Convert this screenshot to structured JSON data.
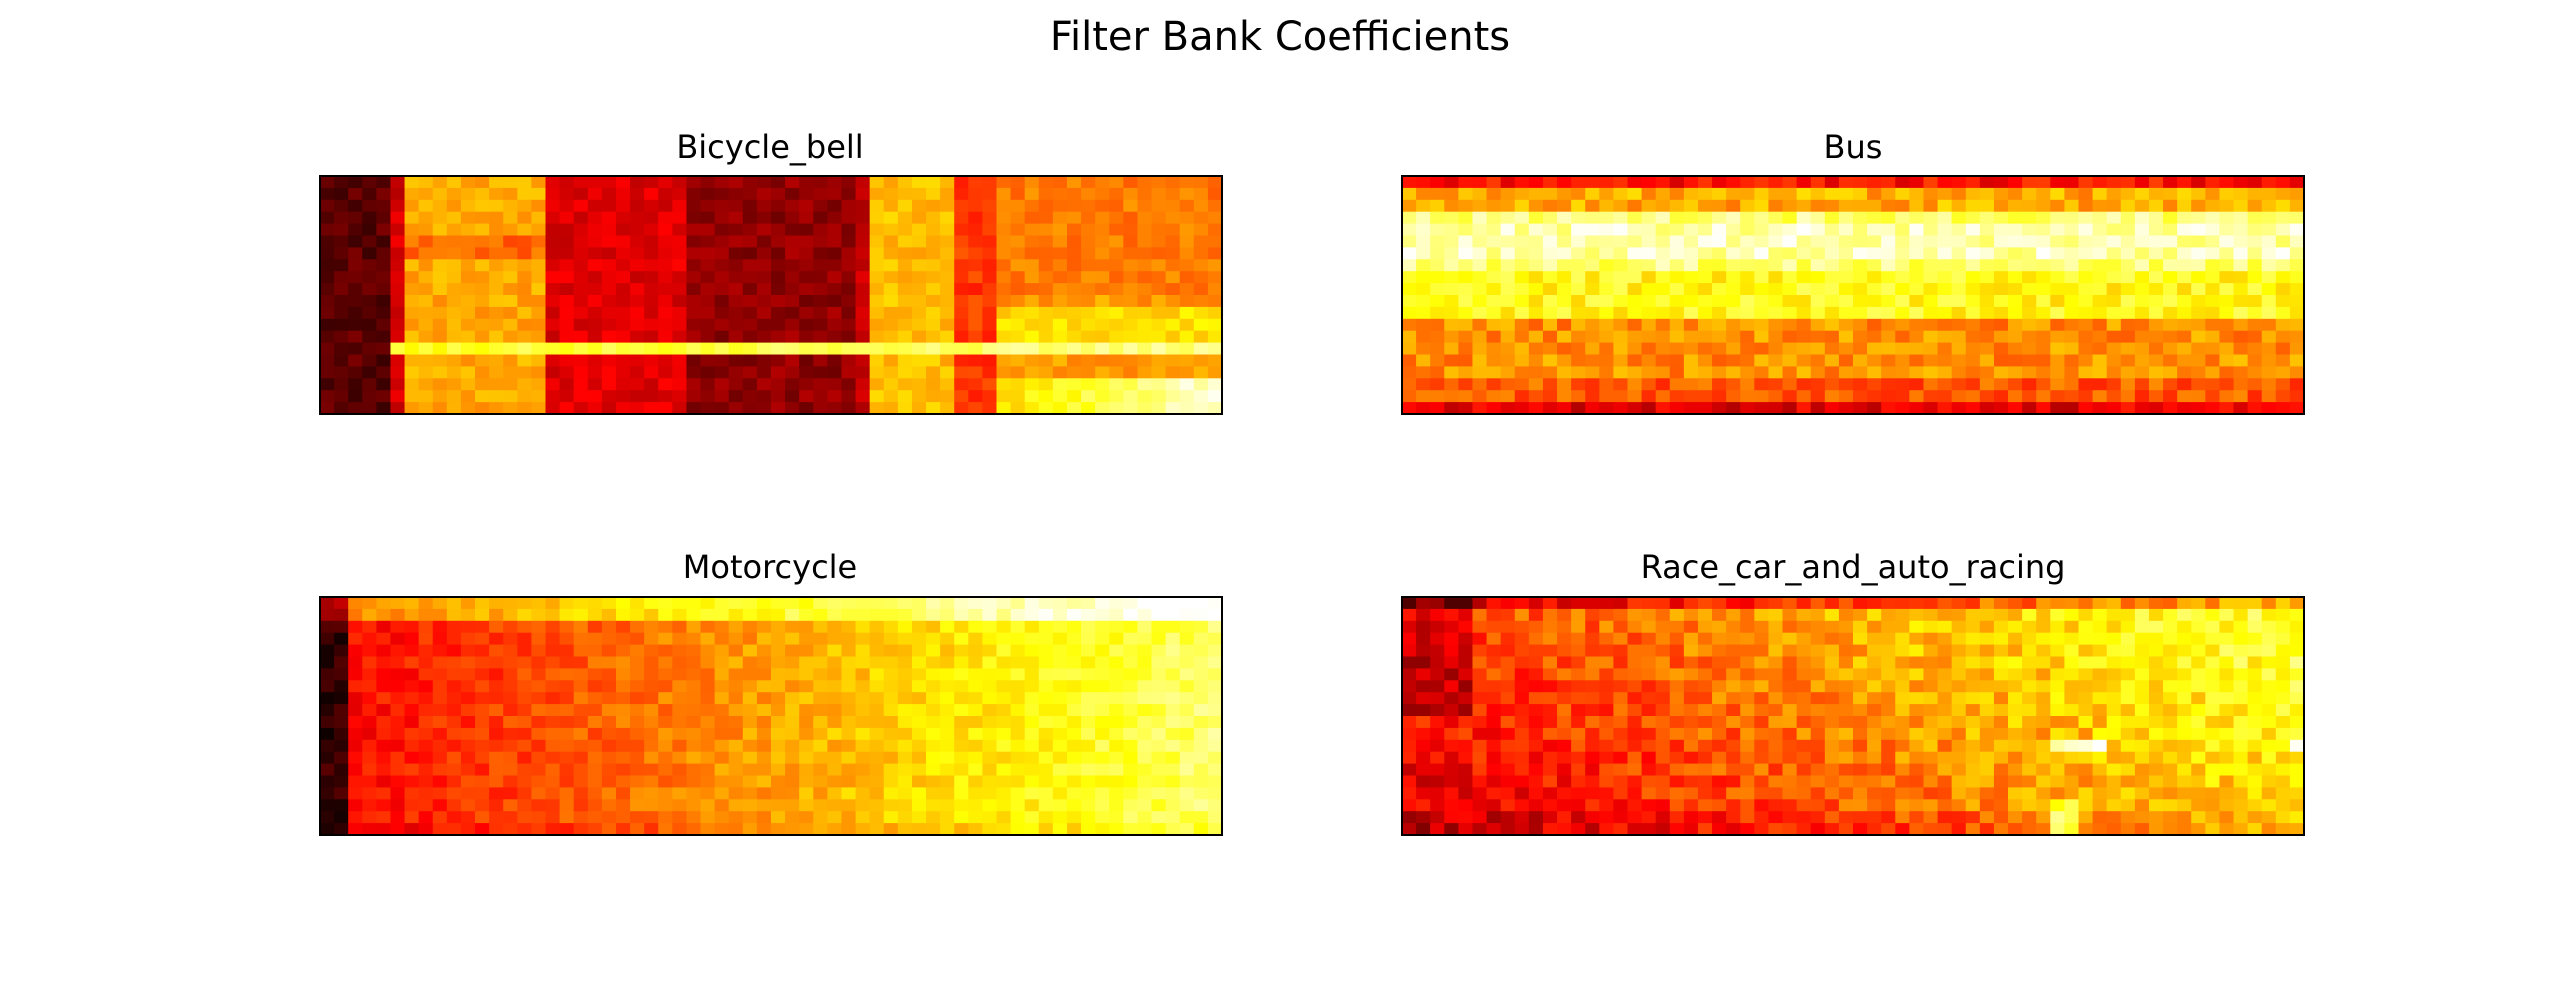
{
  "chart_data": {
    "title": "Filter Bank Coefficients",
    "type": "heatmap",
    "colormap": "hot",
    "axes_visible": false,
    "grid": false,
    "layout": "2x2 grid",
    "panels": [
      {
        "title": "Bicycle_bell",
        "profile": "bicycle",
        "description": "spectrogram-like heatmap with dark red vertical bands and a bright yellow horizontal line near the bottom"
      },
      {
        "title": "Bus",
        "profile": "bus",
        "description": "bright yellow/white horizontal band in upper-middle, orange lower half, dark edges"
      },
      {
        "title": "Motorcycle",
        "profile": "motorcycle",
        "description": "dark red on left fading to bright yellow on right, bright top rows"
      },
      {
        "title": "Race_car_and_auto_racing",
        "profile": "racecar",
        "description": "dark red on left and bottom, yellow/orange elsewhere with bright spots"
      }
    ]
  }
}
